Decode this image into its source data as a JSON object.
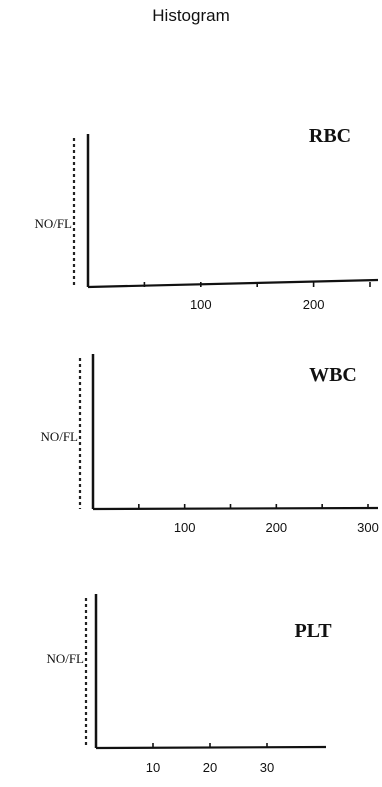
{
  "page": {
    "title": "Histogram"
  },
  "chart_data": [
    {
      "type": "histogram",
      "title": "RBC",
      "ylabel": "NO/FL",
      "xlim": [
        0,
        250
      ],
      "x_ticks": [
        50,
        100,
        150,
        200,
        250
      ],
      "x_tick_labels": [
        "100",
        "200"
      ],
      "grid": false,
      "values": []
    },
    {
      "type": "histogram",
      "title": "WBC",
      "ylabel": "NO/FL",
      "xlim": [
        0,
        300
      ],
      "x_ticks": [
        50,
        100,
        150,
        200,
        250,
        300
      ],
      "x_tick_labels": [
        "100",
        "200",
        "300"
      ],
      "grid": false,
      "values": []
    },
    {
      "type": "histogram",
      "title": "PLT",
      "ylabel": "NO/FL",
      "xlim": [
        0,
        40
      ],
      "x_ticks": [
        10,
        20,
        30
      ],
      "x_tick_labels": [
        "10",
        "20",
        "30"
      ],
      "grid": false,
      "values": []
    }
  ]
}
